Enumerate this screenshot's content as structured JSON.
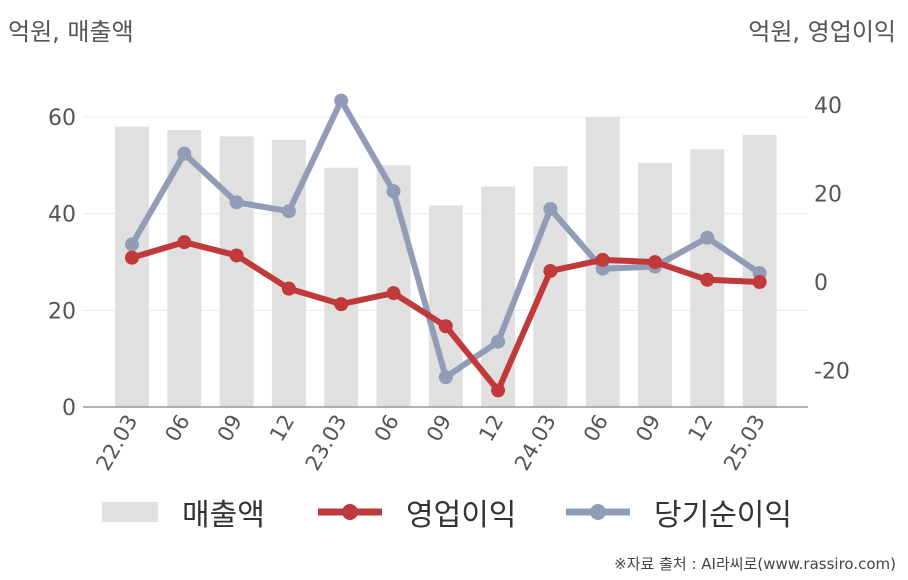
{
  "unit_left": "억원, 매출액",
  "unit_right": "억원, 영업이익",
  "source": "※자료 출처 : AI라씨로(www.rassiro.com)",
  "colors": {
    "revenue": "#e0e0e0",
    "operating": "#c0393b",
    "net": "#919cb6"
  },
  "chart_data": {
    "type": "bar",
    "categories": [
      "22.03",
      "06",
      "09",
      "12",
      "23.03",
      "06",
      "09",
      "12",
      "24.03",
      "06",
      "09",
      "12",
      "25.03"
    ],
    "left_axis": {
      "ticks": [
        0,
        20,
        40,
        60
      ],
      "ylim": [
        0,
        60
      ]
    },
    "right_axis": {
      "ticks": [
        -20,
        0,
        20,
        40
      ],
      "ylim": [
        -28,
        40
      ]
    },
    "series": [
      {
        "name": "매출액",
        "type": "bar",
        "axis": "left",
        "values": [
          58,
          57.3,
          56,
          55.3,
          49.5,
          50,
          41.7,
          45.6,
          49.8,
          60,
          50.5,
          53.3,
          56.3
        ]
      },
      {
        "name": "영업이익",
        "type": "line",
        "axis": "right",
        "values": [
          5.5,
          9,
          6,
          -1.5,
          -5,
          -2.5,
          -10,
          -24.5,
          2.5,
          5,
          4.5,
          0.5,
          0
        ]
      },
      {
        "name": "당기순이익",
        "type": "line",
        "axis": "right",
        "values": [
          8.5,
          29,
          18,
          16,
          41,
          20.5,
          -21.5,
          -13.5,
          16.5,
          3,
          3.5,
          10,
          2
        ]
      }
    ]
  }
}
